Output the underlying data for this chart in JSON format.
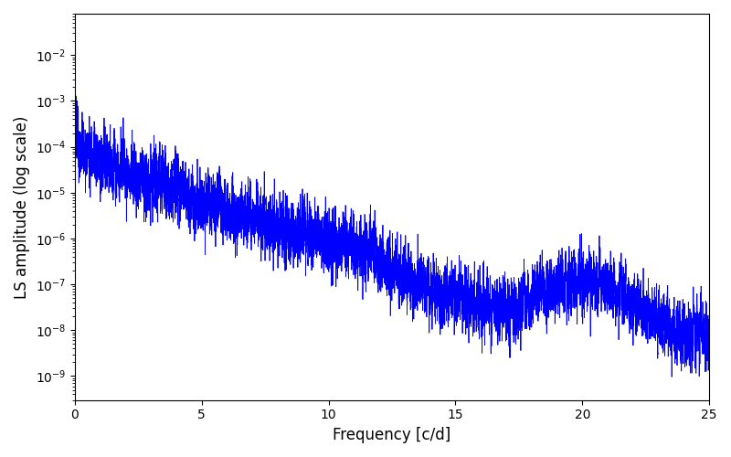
{
  "title": "",
  "xlabel": "Frequency [c/d]",
  "ylabel": "LS amplitude (log scale)",
  "line_color": "blue",
  "line_width": 0.6,
  "xlim": [
    0,
    25
  ],
  "ylim": [
    3e-10,
    0.08
  ],
  "freq_max": 25.0,
  "n_points": 8000,
  "background_color": "#ffffff",
  "figsize": [
    8.0,
    5.0
  ],
  "dpi": 100,
  "xticks": [
    0,
    5,
    10,
    15,
    20,
    25
  ]
}
